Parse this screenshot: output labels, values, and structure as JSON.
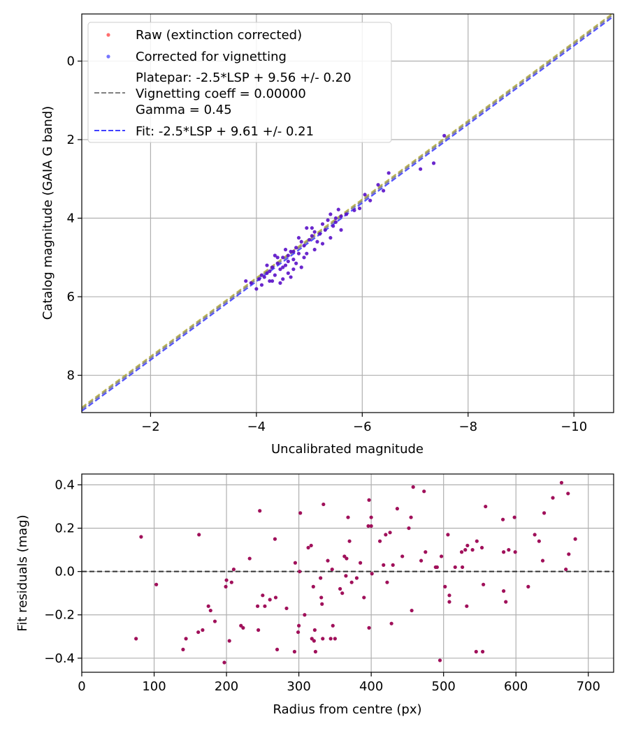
{
  "chart_data": [
    {
      "type": "scatter",
      "xlabel": "Uncalibrated magnitude",
      "ylabel": "Catalog magnitude (GAIA G band)",
      "xlim": [
        -0.7,
        -10.75
      ],
      "ylim": [
        8.95,
        -1.2
      ],
      "x_ticks": [
        -2,
        -4,
        -6,
        -8,
        -10
      ],
      "x_tick_labels": [
        "−2",
        "−4",
        "−6",
        "−8",
        "−10"
      ],
      "y_ticks": [
        0,
        2,
        4,
        6,
        8
      ],
      "y_tick_labels": [
        "0",
        "2",
        "4",
        "6",
        "8"
      ],
      "grid": true,
      "legend_position": "top-left",
      "legend": [
        {
          "kind": "marker",
          "label": "Raw (extinction corrected)",
          "color": "#ff3030"
        },
        {
          "kind": "marker",
          "label": "Corrected for vignetting",
          "color": "#3a3aff"
        },
        {
          "kind": "line",
          "lines": [
            "Platepar: -2.5*LSP + 9.56 +/- 0.20",
            "Vignetting coeff = 0.00000",
            "Gamma = 0.45"
          ],
          "color": "#808080"
        },
        {
          "kind": "line",
          "lines": [
            "Fit: -2.5*LSP + 9.61 +/- 0.21"
          ],
          "color": "#4040ff"
        }
      ],
      "lines": [
        {
          "name": "Platepar",
          "slope": 1,
          "intercept": 9.56,
          "color": "#808080"
        },
        {
          "name": "Fit",
          "slope": 1,
          "intercept": 9.61,
          "color": "#4040ff"
        },
        {
          "name": "Reference",
          "slope": 1,
          "intercept": 9.52,
          "color": "#b8b040"
        }
      ],
      "point_color": "#5a10c8",
      "points": [
        [
          -7.55,
          1.9
        ],
        [
          -7.35,
          2.6
        ],
        [
          -7.1,
          2.75
        ],
        [
          -6.5,
          2.85
        ],
        [
          -6.4,
          3.3
        ],
        [
          -6.3,
          3.15
        ],
        [
          -6.15,
          3.55
        ],
        [
          -6.05,
          3.4
        ],
        [
          -5.95,
          3.75
        ],
        [
          -5.85,
          3.8
        ],
        [
          -5.7,
          3.9
        ],
        [
          -5.6,
          3.95
        ],
        [
          -5.55,
          3.78
        ],
        [
          -5.5,
          4.1
        ],
        [
          -5.45,
          4.2
        ],
        [
          -5.4,
          3.9
        ],
        [
          -5.35,
          4.05
        ],
        [
          -5.3,
          4.3
        ],
        [
          -5.25,
          4.15
        ],
        [
          -5.2,
          4.4
        ],
        [
          -5.15,
          4.6
        ],
        [
          -5.1,
          4.35
        ],
        [
          -5.05,
          4.45
        ],
        [
          -5.0,
          4.55
        ],
        [
          -4.95,
          4.25
        ],
        [
          -4.9,
          4.7
        ],
        [
          -4.85,
          4.6
        ],
        [
          -4.8,
          4.9
        ],
        [
          -4.75,
          4.75
        ],
        [
          -4.7,
          5.05
        ],
        [
          -4.65,
          4.85
        ],
        [
          -4.6,
          4.95
        ],
        [
          -4.55,
          5.2
        ],
        [
          -4.5,
          5.0
        ],
        [
          -4.45,
          5.3
        ],
        [
          -4.4,
          5.15
        ],
        [
          -4.35,
          5.45
        ],
        [
          -4.3,
          5.25
        ],
        [
          -4.25,
          5.6
        ],
        [
          -4.2,
          5.4
        ],
        [
          -4.15,
          5.5
        ],
        [
          -4.1,
          5.7
        ],
        [
          -4.05,
          5.55
        ],
        [
          -4.0,
          5.8
        ],
        [
          -3.9,
          5.65
        ],
        [
          -3.8,
          5.6
        ],
        [
          -5.6,
          4.3
        ],
        [
          -5.4,
          4.5
        ],
        [
          -4.9,
          5.0
        ],
        [
          -4.7,
          5.3
        ],
        [
          -4.5,
          5.55
        ],
        [
          -4.3,
          5.6
        ],
        [
          -4.8,
          4.5
        ],
        [
          -5.1,
          4.8
        ],
        [
          -4.6,
          5.4
        ],
        [
          -4.4,
          5.0
        ],
        [
          -4.2,
          5.2
        ],
        [
          -4.55,
          4.8
        ],
        [
          -4.75,
          5.15
        ],
        [
          -4.95,
          4.9
        ],
        [
          -5.25,
          4.65
        ],
        [
          -5.5,
          4.0
        ],
        [
          -4.45,
          5.65
        ],
        [
          -4.65,
          5.5
        ],
        [
          -4.35,
          4.95
        ],
        [
          -4.85,
          5.25
        ],
        [
          -5.05,
          4.25
        ],
        [
          -4.25,
          5.35
        ],
        [
          -4.1,
          5.45
        ],
        [
          -4.5,
          5.25
        ],
        [
          -4.6,
          5.1
        ],
        [
          -4.7,
          4.85
        ]
      ]
    },
    {
      "type": "scatter",
      "xlabel": "Radius from centre (px)",
      "ylabel": "Fit residuals (mag)",
      "xlim": [
        0,
        735
      ],
      "ylim": [
        -0.465,
        0.45
      ],
      "x_ticks": [
        0,
        100,
        200,
        300,
        400,
        500,
        600,
        700
      ],
      "x_tick_labels": [
        "0",
        "100",
        "200",
        "300",
        "400",
        "500",
        "600",
        "700"
      ],
      "y_ticks": [
        0.4,
        0.2,
        0.0,
        -0.2,
        -0.4
      ],
      "y_tick_labels": [
        "0.4",
        "0.2",
        "0.0",
        "−0.2",
        "−0.4"
      ],
      "grid": true,
      "reference_line": {
        "y": 0.0,
        "style": "dashed",
        "color": "#333333"
      },
      "point_color": "#a0105a",
      "points": [
        [
          75,
          -0.31
        ],
        [
          82,
          0.16
        ],
        [
          103,
          -0.06
        ],
        [
          140,
          -0.36
        ],
        [
          144,
          -0.31
        ],
        [
          161,
          -0.28
        ],
        [
          162,
          0.17
        ],
        [
          167,
          -0.27
        ],
        [
          175,
          -0.16
        ],
        [
          178,
          -0.18
        ],
        [
          184,
          -0.23
        ],
        [
          197,
          -0.42
        ],
        [
          199,
          -0.07
        ],
        [
          200,
          -0.04
        ],
        [
          204,
          -0.32
        ],
        [
          207,
          -0.05
        ],
        [
          210,
          0.01
        ],
        [
          220,
          -0.25
        ],
        [
          223,
          -0.26
        ],
        [
          232,
          0.06
        ],
        [
          243,
          -0.16
        ],
        [
          244,
          -0.27
        ],
        [
          246,
          0.28
        ],
        [
          250,
          -0.11
        ],
        [
          253,
          -0.16
        ],
        [
          260,
          -0.13
        ],
        [
          268,
          -0.12
        ],
        [
          267,
          0.15
        ],
        [
          270,
          -0.36
        ],
        [
          283,
          -0.17
        ],
        [
          294,
          -0.37
        ],
        [
          295,
          0.04
        ],
        [
          299,
          -0.28
        ],
        [
          300,
          -0.25
        ],
        [
          302,
          0.27
        ],
        [
          301,
          0.0
        ],
        [
          308,
          -0.2
        ],
        [
          313,
          0.11
        ],
        [
          317,
          0.12
        ],
        [
          318,
          -0.31
        ],
        [
          320,
          -0.07
        ],
        [
          321,
          -0.32
        ],
        [
          322,
          -0.27
        ],
        [
          323,
          -0.37
        ],
        [
          330,
          -0.03
        ],
        [
          331,
          -0.12
        ],
        [
          332,
          -0.15
        ],
        [
          333,
          -0.31
        ],
        [
          334,
          0.31
        ],
        [
          340,
          0.05
        ],
        [
          344,
          -0.31
        ],
        [
          346,
          0.01
        ],
        [
          347,
          -0.25
        ],
        [
          350,
          -0.31
        ],
        [
          357,
          -0.08
        ],
        [
          360,
          -0.1
        ],
        [
          363,
          0.07
        ],
        [
          365,
          -0.02
        ],
        [
          366,
          0.06
        ],
        [
          368,
          0.25
        ],
        [
          370,
          0.14
        ],
        [
          373,
          -0.05
        ],
        [
          380,
          -0.03
        ],
        [
          385,
          0.04
        ],
        [
          390,
          -0.12
        ],
        [
          396,
          0.21
        ],
        [
          397,
          0.33
        ],
        [
          397,
          -0.26
        ],
        [
          400,
          0.21
        ],
        [
          400,
          0.25
        ],
        [
          401,
          -0.01
        ],
        [
          412,
          0.14
        ],
        [
          417,
          0.03
        ],
        [
          420,
          0.17
        ],
        [
          422,
          -0.05
        ],
        [
          426,
          0.18
        ],
        [
          428,
          -0.24
        ],
        [
          430,
          0.03
        ],
        [
          436,
          0.29
        ],
        [
          443,
          0.07
        ],
        [
          452,
          0.2
        ],
        [
          455,
          0.25
        ],
        [
          456,
          -0.18
        ],
        [
          458,
          0.39
        ],
        [
          469,
          0.05
        ],
        [
          473,
          0.37
        ],
        [
          475,
          0.09
        ],
        [
          489,
          0.02
        ],
        [
          491,
          0.02
        ],
        [
          495,
          -0.41
        ],
        [
          497,
          0.07
        ],
        [
          502,
          -0.07
        ],
        [
          506,
          0.17
        ],
        [
          508,
          -0.11
        ],
        [
          508,
          -0.14
        ],
        [
          516,
          0.02
        ],
        [
          525,
          0.09
        ],
        [
          526,
          0.02
        ],
        [
          530,
          0.1
        ],
        [
          532,
          -0.16
        ],
        [
          533,
          0.12
        ],
        [
          540,
          0.1
        ],
        [
          545,
          -0.37
        ],
        [
          546,
          0.14
        ],
        [
          553,
          0.11
        ],
        [
          554,
          -0.37
        ],
        [
          555,
          -0.06
        ],
        [
          558,
          0.3
        ],
        [
          582,
          0.24
        ],
        [
          583,
          0.09
        ],
        [
          583,
          -0.09
        ],
        [
          586,
          -0.14
        ],
        [
          590,
          0.1
        ],
        [
          598,
          0.25
        ],
        [
          599,
          0.09
        ],
        [
          617,
          -0.07
        ],
        [
          626,
          0.17
        ],
        [
          632,
          0.14
        ],
        [
          637,
          0.05
        ],
        [
          639,
          0.27
        ],
        [
          651,
          0.34
        ],
        [
          663,
          0.41
        ],
        [
          669,
          0.01
        ],
        [
          672,
          0.36
        ],
        [
          673,
          0.08
        ],
        [
          682,
          0.15
        ]
      ]
    }
  ]
}
